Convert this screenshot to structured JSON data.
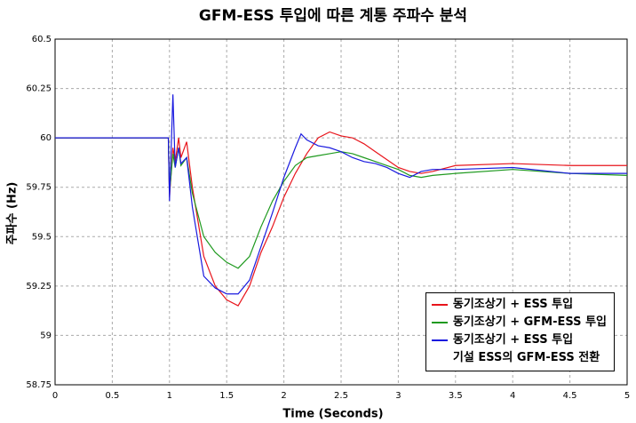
{
  "chart_data": {
    "type": "line",
    "title": "GFM-ESS 투입에 따른 계통 주파수 분석",
    "x_label": "Time (Seconds)",
    "y_label": "주파수 (Hz)",
    "x": [
      0,
      0.5,
      0.99,
      1.0,
      1.03,
      1.05,
      1.08,
      1.1,
      1.15,
      1.2,
      1.3,
      1.4,
      1.5,
      1.6,
      1.7,
      1.8,
      1.9,
      2.0,
      2.1,
      2.15,
      2.2,
      2.3,
      2.4,
      2.5,
      2.6,
      2.7,
      2.8,
      2.9,
      3.0,
      3.1,
      3.2,
      3.3,
      3.5,
      4.0,
      4.5,
      5.0
    ],
    "series": [
      {
        "name": "동기조상기 + ESS 투입",
        "color": "#e8141b",
        "values": [
          60,
          60,
          60,
          59.7,
          59.95,
          59.88,
          60.0,
          59.9,
          59.98,
          59.75,
          59.4,
          59.25,
          59.18,
          59.15,
          59.25,
          59.42,
          59.55,
          59.7,
          59.82,
          59.87,
          59.92,
          60.0,
          60.03,
          60.01,
          60.0,
          59.97,
          59.93,
          59.89,
          59.85,
          59.83,
          59.82,
          59.83,
          59.86,
          59.87,
          59.86,
          59.86
        ]
      },
      {
        "name": "동기조상기 + GFM-ESS 투입",
        "color": "#1f9a1f",
        "values": [
          60,
          60,
          60,
          59.72,
          59.92,
          59.85,
          59.95,
          59.86,
          59.9,
          59.72,
          59.5,
          59.42,
          59.37,
          59.34,
          59.4,
          59.55,
          59.68,
          59.78,
          59.86,
          59.88,
          59.9,
          59.91,
          59.92,
          59.93,
          59.92,
          59.9,
          59.88,
          59.86,
          59.84,
          59.81,
          59.8,
          59.81,
          59.82,
          59.84,
          59.82,
          59.81
        ]
      },
      {
        "name": "동기조상기 + ESS 투입\n기설 ESS의 GFM-ESS 전환",
        "color": "#1a1adf",
        "values": [
          60,
          60,
          60,
          59.68,
          60.22,
          59.85,
          59.95,
          59.87,
          59.9,
          59.65,
          59.3,
          59.24,
          59.21,
          59.21,
          59.28,
          59.45,
          59.62,
          59.8,
          59.95,
          60.02,
          59.99,
          59.96,
          59.95,
          59.93,
          59.9,
          59.88,
          59.87,
          59.85,
          59.82,
          59.8,
          59.83,
          59.84,
          59.84,
          59.85,
          59.82,
          59.82
        ]
      }
    ],
    "xlim": [
      0,
      5
    ],
    "xticks": [
      0,
      0.5,
      1,
      1.5,
      2,
      2.5,
      3,
      3.5,
      4,
      4.5,
      5
    ],
    "ylim": [
      58.75,
      60.5
    ],
    "yticks": [
      58.75,
      59,
      59.25,
      59.5,
      59.75,
      60,
      60.25,
      60.5
    ],
    "grid": true,
    "legend_position": "lower right"
  }
}
